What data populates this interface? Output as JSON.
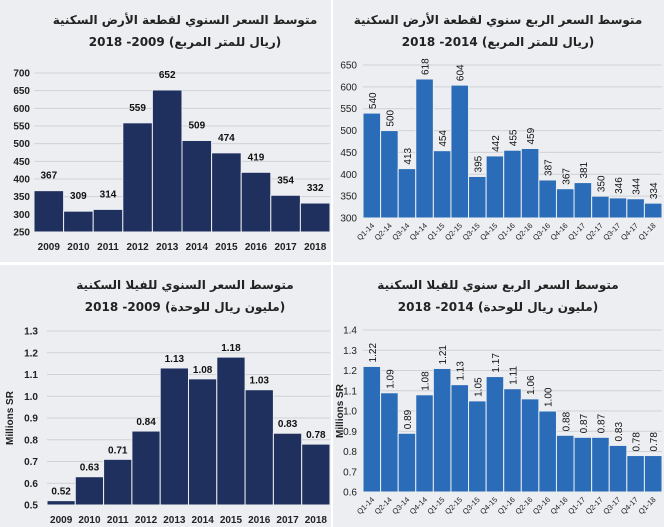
{
  "chart_data": [
    {
      "type": "bar",
      "title": "متوسط السعر السنوي لقطعة الأرض السكنية",
      "subtitle": "(ريال للمتر المربع) 2009- 2018",
      "ylabel": "",
      "categories": [
        "2009",
        "2010",
        "2011",
        "2012",
        "2013",
        "2014",
        "2015",
        "2016",
        "2017",
        "2018"
      ],
      "values": [
        367,
        309,
        314,
        559,
        652,
        509,
        474,
        419,
        354,
        332
      ],
      "data_labels": [
        "367",
        "309",
        "314",
        "559",
        "652",
        "509",
        "474",
        "419",
        "354",
        "332"
      ],
      "ylim": [
        250,
        700
      ],
      "yticks": [
        "250",
        "300",
        "350",
        "400",
        "450",
        "500",
        "550",
        "600",
        "650",
        "700"
      ],
      "grid": true,
      "color": "#1f2f5e"
    },
    {
      "type": "bar",
      "title": "متوسط السعر الربع سنوي لقطعة الأرض السكنية",
      "subtitle": "(ريال للمتر المربع) 2014- 2018",
      "ylabel": "",
      "categories": [
        "Q1-14",
        "Q2-14",
        "Q3-14",
        "Q4-14",
        "Q1-15",
        "Q2-15",
        "Q3-15",
        "Q4-15",
        "Q1-16",
        "Q2-16",
        "Q3-16",
        "Q4-16",
        "Q1-17",
        "Q2-17",
        "Q3-17",
        "Q4-17",
        "Q1-18"
      ],
      "values": [
        540,
        500,
        413,
        618,
        454,
        604,
        395,
        442,
        455,
        459,
        387,
        367,
        381,
        350,
        346,
        344,
        334
      ],
      "data_labels": [
        "540",
        "500",
        "413",
        "618",
        "454",
        "604",
        "395",
        "442",
        "455",
        "459",
        "387",
        "367",
        "381",
        "350",
        "346",
        "344",
        "334"
      ],
      "ylim": [
        300,
        650
      ],
      "yticks": [
        "300",
        "350",
        "400",
        "450",
        "500",
        "550",
        "600",
        "650"
      ],
      "grid": true,
      "color": "#2b6cb8"
    },
    {
      "type": "bar",
      "title": "متوسط السعر السنوي للفيلا السكنية",
      "subtitle": "(مليون ريال للوحدة) 2009- 2018",
      "ylabel": "Millions SR",
      "categories": [
        "2009",
        "2010",
        "2011",
        "2012",
        "2013",
        "2014",
        "2015",
        "2016",
        "2017",
        "2018"
      ],
      "values": [
        0.52,
        0.63,
        0.71,
        0.84,
        1.13,
        1.08,
        1.18,
        1.03,
        0.83,
        0.78
      ],
      "data_labels": [
        "0.52",
        "0.63",
        "0.71",
        "0.84",
        "1.13",
        "1.08",
        "1.18",
        "1.03",
        "0.83",
        "0.78"
      ],
      "ylim": [
        0.5,
        1.3
      ],
      "yticks": [
        "0.5",
        "0.6",
        "0.7",
        "0.8",
        "0.9",
        "1.0",
        "1.1",
        "1.2",
        "1.3"
      ],
      "grid": true,
      "color": "#1f2f5e"
    },
    {
      "type": "bar",
      "title": "متوسط السعر الربع سنوي للفيلا السكنية",
      "subtitle": "(مليون ريال للوحدة) 2014- 2018",
      "ylabel": "Millions SR",
      "categories": [
        "Q1-14",
        "Q2-14",
        "Q3-14",
        "Q4-14",
        "Q1-15",
        "Q2-15",
        "Q3-15",
        "Q4-15",
        "Q1-16",
        "Q2-16",
        "Q3-16",
        "Q4-16",
        "Q1-17",
        "Q2-17",
        "Q3-17",
        "Q4-17",
        "Q1-18"
      ],
      "values": [
        1.22,
        1.09,
        0.89,
        1.08,
        1.21,
        1.13,
        1.05,
        1.17,
        1.11,
        1.06,
        1.0,
        0.88,
        0.87,
        0.87,
        0.83,
        0.78,
        0.78
      ],
      "data_labels": [
        "1.22",
        "1.09",
        "0.89",
        "1.08",
        "1.21",
        "1.13",
        "1.05",
        "1.17",
        "1.11",
        "1.06",
        "1.00",
        "0.88",
        "0.87",
        "0.87",
        "0.83",
        "0.78",
        "0.78"
      ],
      "ylim": [
        0.6,
        1.4
      ],
      "yticks": [
        "0.6",
        "0.7",
        "0.8",
        "0.9",
        "1.0",
        "1.1",
        "1.2",
        "1.3",
        "1.4"
      ],
      "grid": true,
      "color": "#2b6cb8"
    }
  ]
}
